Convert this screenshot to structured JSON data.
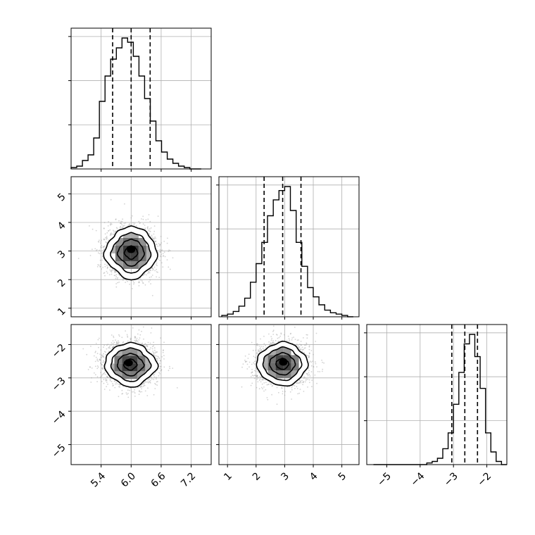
{
  "chart_data": {
    "type": "corner",
    "params": [
      "",
      "",
      ""
    ],
    "quantile_levels": [
      0.16,
      0.5,
      0.84
    ],
    "grid": true,
    "colors": {
      "hist": "#000000",
      "points": "#9e9e9e",
      "contour": "#000000",
      "grid": "#b0b0b0"
    },
    "axes": {
      "p0": {
        "range": [
          4.8,
          7.6
        ],
        "ticks": [
          5.4,
          6.0,
          6.6,
          7.2
        ],
        "tick_labels": [
          "5.4",
          "6.0",
          "6.6",
          "7.2"
        ]
      },
      "p1": {
        "range": [
          0.7,
          5.6
        ],
        "ticks": [
          1,
          2,
          3,
          4,
          5
        ],
        "tick_labels": [
          "1",
          "2",
          "3",
          "4",
          "5"
        ]
      },
      "p2": {
        "range": [
          -5.6,
          -1.4
        ],
        "ticks": [
          -5,
          -4,
          -3,
          -2
        ],
        "tick_labels": [
          "−5",
          "−4",
          "−3",
          "−2"
        ]
      }
    },
    "marginals": [
      {
        "param": "p0",
        "bins_range": [
          4.8,
          7.4
        ],
        "counts": [
          1,
          2,
          6,
          10,
          22,
          48,
          66,
          78,
          86,
          93,
          90,
          80,
          66,
          50,
          34,
          20,
          12,
          7,
          4,
          2,
          1,
          0,
          0
        ],
        "quantiles": [
          5.63,
          6.0,
          6.38
        ],
        "yticks_rel": [
          0.3333,
          0.6667,
          1.0
        ]
      },
      {
        "param": "p1",
        "bins_range": [
          0.8,
          5.4
        ],
        "counts": [
          1,
          2,
          4,
          8,
          14,
          26,
          40,
          56,
          76,
          88,
          95,
          98,
          80,
          56,
          38,
          22,
          15,
          9,
          5,
          3,
          2,
          1,
          0
        ],
        "quantiles": [
          2.28,
          2.93,
          3.57
        ],
        "yticks_rel": [
          0.3333,
          0.6667,
          1.0
        ]
      },
      {
        "param": "p2",
        "bins_range": [
          -5.4,
          -1.4
        ],
        "counts": [
          0,
          0,
          0,
          0,
          0,
          0,
          0,
          0,
          0,
          0,
          1,
          2,
          4,
          10,
          20,
          38,
          58,
          76,
          82,
          68,
          48,
          20,
          8,
          2,
          0
        ],
        "quantiles": [
          -3.05,
          -2.66,
          -2.28
        ],
        "yticks_rel": [
          0.3333,
          0.6667,
          1.0
        ]
      }
    ],
    "pairs": [
      {
        "x": "p0",
        "y": "p1",
        "mean": [
          6.0,
          2.95
        ],
        "sd": [
          0.26,
          0.44
        ],
        "mode": [
          6.0,
          3.05
        ],
        "lobes": [
          1,
          0.95,
          1.08,
          0.92,
          1.05,
          0.9,
          1.07,
          0.94
        ]
      },
      {
        "x": "p0",
        "y": "p2",
        "mean": [
          5.98,
          -2.6
        ],
        "sd": [
          0.26,
          0.32
        ],
        "mode": [
          5.95,
          -2.55
        ],
        "lobes": [
          1.05,
          0.93,
          1.06,
          0.9,
          1.0,
          0.95,
          1.04,
          0.92
        ]
      },
      {
        "x": "p1",
        "y": "p2",
        "mean": [
          2.92,
          -2.58
        ],
        "sd": [
          0.44,
          0.32
        ],
        "mode": [
          2.95,
          -2.53
        ],
        "lobes": [
          1.0,
          0.96,
          1.05,
          0.93,
          1.06,
          0.94,
          1.03,
          0.95
        ]
      }
    ],
    "contour_sigma_levels": [
      0.5,
      1.0,
      1.5,
      2.0
    ]
  }
}
